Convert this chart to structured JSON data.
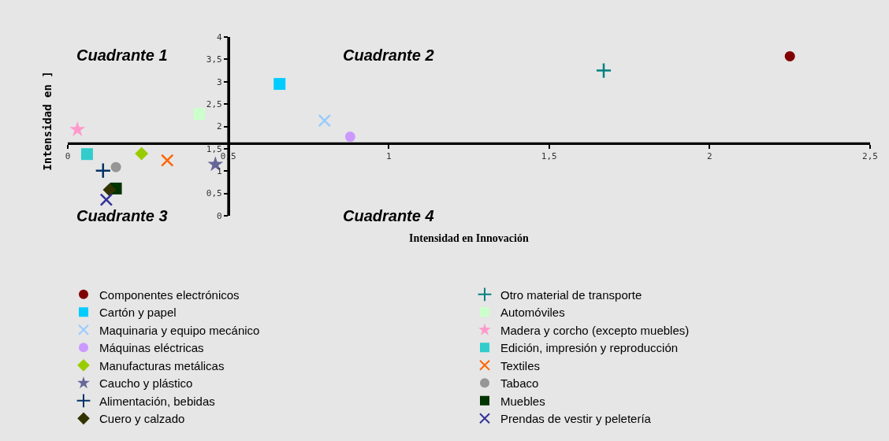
{
  "chart_data": {
    "type": "scatter",
    "xlabel": "Intensidad en Innovación",
    "ylabel": "Intensidad en ]",
    "xlim": [
      0,
      2.5
    ],
    "xticks": [
      0,
      {
        "value": 0.5,
        "label": "0,5"
      },
      1,
      {
        "value": 1.5,
        "label": "1,5"
      },
      2,
      {
        "value": 2.5,
        "label": "2,5"
      }
    ],
    "ylim": [
      0,
      4
    ],
    "yticks": [
      0,
      {
        "value": 0.5,
        "label": "0,5"
      },
      1,
      {
        "value": 1.5,
        "label": "1,5"
      },
      2,
      {
        "value": 2.5,
        "label": "2,5"
      },
      3,
      {
        "value": 3.5,
        "label": "3,5"
      },
      4
    ],
    "ref_lines": [
      {
        "axis": "x",
        "value": 0.5
      },
      {
        "axis": "y",
        "value": 1.62
      }
    ],
    "annotations": [
      "Cuadrante 1",
      "Cuadrante 2",
      "Cuadrante 3",
      "Cuadrante 4"
    ],
    "legend": "bottom",
    "grid": false,
    "series": [
      {
        "name": "Componentes electrónicos",
        "color": "#800000",
        "marker": "circle",
        "x": [
          2.25
        ],
        "values": [
          3.57
        ]
      },
      {
        "name": "Otro material de transporte",
        "color": "#008080",
        "marker": "cross",
        "x": [
          1.67
        ],
        "values": [
          3.25
        ]
      },
      {
        "name": "Cartón y papel",
        "color": "#00ccff",
        "marker": "square",
        "x": [
          0.66
        ],
        "values": [
          2.95
        ]
      },
      {
        "name": "Automóviles",
        "color": "#ccffcc",
        "marker": "square",
        "x": [
          0.41
        ],
        "values": [
          2.28
        ]
      },
      {
        "name": "Maquinaria y equipo mecánico",
        "color": "#99ccff",
        "marker": "x",
        "x": [
          0.8
        ],
        "values": [
          2.13
        ]
      },
      {
        "name": "Madera y corcho (excepto muebles)",
        "color": "#ff99cc",
        "marker": "star",
        "x": [
          0.03
        ],
        "values": [
          1.93
        ]
      },
      {
        "name": "Máquinas eléctricas",
        "color": "#cc99ff",
        "marker": "circle",
        "x": [
          0.88
        ],
        "values": [
          1.77
        ]
      },
      {
        "name": "Edición, impresión y reproducción",
        "color": "#33cccc",
        "marker": "square",
        "x": [
          0.06
        ],
        "values": [
          1.38
        ]
      },
      {
        "name": "Manufacturas metálicas",
        "color": "#99cc00",
        "marker": "diamond",
        "x": [
          0.23
        ],
        "values": [
          1.39
        ]
      },
      {
        "name": "Textiles",
        "color": "#ff6600",
        "marker": "x",
        "x": [
          0.31
        ],
        "values": [
          1.24
        ]
      },
      {
        "name": "Caucho y plástico",
        "color": "#666699",
        "marker": "star",
        "x": [
          0.46
        ],
        "values": [
          1.15
        ]
      },
      {
        "name": "Tabaco",
        "color": "#969696",
        "marker": "circle",
        "x": [
          0.15
        ],
        "values": [
          1.09
        ]
      },
      {
        "name": "Alimentación, bebidas",
        "color": "#003366",
        "marker": "cross",
        "x": [
          0.11
        ],
        "values": [
          1.01
        ]
      },
      {
        "name": "Muebles",
        "color": "#003300",
        "marker": "square",
        "x": [
          0.15
        ],
        "values": [
          0.61
        ]
      },
      {
        "name": "Cuero y calzado",
        "color": "#333300",
        "marker": "diamond",
        "x": [
          0.13
        ],
        "values": [
          0.58
        ]
      },
      {
        "name": "Prendas de vestir y peletería",
        "color": "#333399",
        "marker": "x",
        "x": [
          0.12
        ],
        "values": [
          0.36
        ]
      }
    ]
  }
}
